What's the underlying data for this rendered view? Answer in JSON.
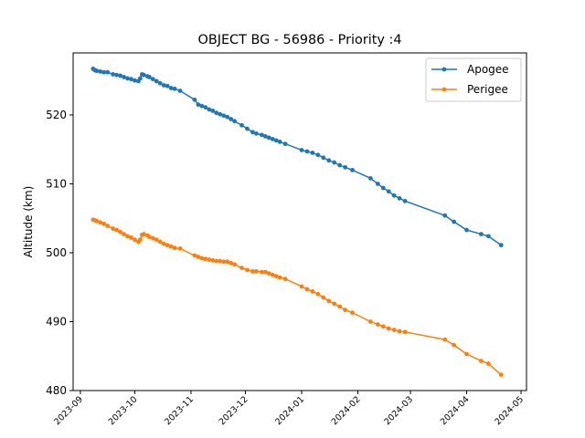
{
  "chart_data": {
    "type": "line",
    "title": "OBJECT BG - 56986 - Priority :4",
    "xlabel": "",
    "ylabel": "Altitude (km)",
    "xlim": [
      "2023-08-28",
      "2024-05-04"
    ],
    "ylim": [
      480,
      529
    ],
    "yticks": [
      480,
      490,
      500,
      510,
      520
    ],
    "xticks": [
      "2023-09",
      "2023-10",
      "2023-11",
      "2023-12",
      "2024-01",
      "2024-02",
      "2024-03",
      "2024-04",
      "2024-05"
    ],
    "grid": false,
    "legend_position": "top-right",
    "series": [
      {
        "name": "Apogee",
        "color": "#1f77b4",
        "points": [
          [
            "2023-09-08",
            526.7
          ],
          [
            "2023-09-09",
            526.5
          ],
          [
            "2023-09-10",
            526.4
          ],
          [
            "2023-09-12",
            526.3
          ],
          [
            "2023-09-14",
            526.2
          ],
          [
            "2023-09-16",
            526.2
          ],
          [
            "2023-09-19",
            525.9
          ],
          [
            "2023-09-21",
            525.8
          ],
          [
            "2023-09-23",
            525.7
          ],
          [
            "2023-09-25",
            525.5
          ],
          [
            "2023-09-27",
            525.3
          ],
          [
            "2023-09-29",
            525.2
          ],
          [
            "2023-10-01",
            525.0
          ],
          [
            "2023-10-03",
            524.9
          ],
          [
            "2023-10-04",
            525.3
          ],
          [
            "2023-10-05",
            525.9
          ],
          [
            "2023-10-06",
            525.8
          ],
          [
            "2023-10-08",
            525.6
          ],
          [
            "2023-10-09",
            525.5
          ],
          [
            "2023-10-11",
            525.2
          ],
          [
            "2023-10-13",
            524.9
          ],
          [
            "2023-10-15",
            524.6
          ],
          [
            "2023-10-17",
            524.3
          ],
          [
            "2023-10-19",
            524.2
          ],
          [
            "2023-10-21",
            523.9
          ],
          [
            "2023-10-23",
            523.8
          ],
          [
            "2023-10-26",
            523.5
          ],
          [
            "2023-11-03",
            522.2
          ],
          [
            "2023-11-05",
            521.5
          ],
          [
            "2023-11-07",
            521.3
          ],
          [
            "2023-11-09",
            521.1
          ],
          [
            "2023-11-11",
            520.8
          ],
          [
            "2023-11-13",
            520.6
          ],
          [
            "2023-11-15",
            520.3
          ],
          [
            "2023-11-17",
            520.1
          ],
          [
            "2023-11-19",
            519.9
          ],
          [
            "2023-11-21",
            519.7
          ],
          [
            "2023-11-23",
            519.4
          ],
          [
            "2023-11-25",
            519.1
          ],
          [
            "2023-11-29",
            518.5
          ],
          [
            "2023-12-02",
            518.0
          ],
          [
            "2023-12-05",
            517.5
          ],
          [
            "2023-12-07",
            517.3
          ],
          [
            "2023-12-10",
            517.1
          ],
          [
            "2023-12-12",
            516.9
          ],
          [
            "2023-12-14",
            516.7
          ],
          [
            "2023-12-16",
            516.5
          ],
          [
            "2023-12-18",
            516.3
          ],
          [
            "2023-12-20",
            516.1
          ],
          [
            "2023-12-23",
            515.8
          ],
          [
            "2024-01-01",
            514.9
          ],
          [
            "2024-01-04",
            514.7
          ],
          [
            "2024-01-07",
            514.5
          ],
          [
            "2024-01-10",
            514.2
          ],
          [
            "2024-01-13",
            513.8
          ],
          [
            "2024-01-16",
            513.4
          ],
          [
            "2024-01-19",
            513.1
          ],
          [
            "2024-01-22",
            512.7
          ],
          [
            "2024-01-25",
            512.4
          ],
          [
            "2024-01-29",
            512.0
          ],
          [
            "2024-02-08",
            510.8
          ],
          [
            "2024-02-12",
            510.0
          ],
          [
            "2024-02-15",
            509.4
          ],
          [
            "2024-02-18",
            508.9
          ],
          [
            "2024-02-21",
            508.3
          ],
          [
            "2024-02-24",
            507.9
          ],
          [
            "2024-02-27",
            507.5
          ],
          [
            "2024-03-20",
            505.4
          ],
          [
            "2024-03-25",
            504.5
          ],
          [
            "2024-04-01",
            503.3
          ],
          [
            "2024-04-09",
            502.7
          ],
          [
            "2024-04-13",
            502.4
          ],
          [
            "2024-04-20",
            501.1
          ]
        ]
      },
      {
        "name": "Perigee",
        "color": "#ff7f0e",
        "points": [
          [
            "2023-09-08",
            504.8
          ],
          [
            "2023-09-09",
            504.7
          ],
          [
            "2023-09-10",
            504.6
          ],
          [
            "2023-09-12",
            504.4
          ],
          [
            "2023-09-14",
            504.2
          ],
          [
            "2023-09-16",
            503.9
          ],
          [
            "2023-09-19",
            503.5
          ],
          [
            "2023-09-21",
            503.3
          ],
          [
            "2023-09-23",
            503.0
          ],
          [
            "2023-09-25",
            502.7
          ],
          [
            "2023-09-27",
            502.4
          ],
          [
            "2023-09-29",
            502.2
          ],
          [
            "2023-10-01",
            501.9
          ],
          [
            "2023-10-03",
            501.6
          ],
          [
            "2023-10-04",
            501.9
          ],
          [
            "2023-10-05",
            502.6
          ],
          [
            "2023-10-06",
            502.7
          ],
          [
            "2023-10-08",
            502.5
          ],
          [
            "2023-10-09",
            502.3
          ],
          [
            "2023-10-11",
            502.1
          ],
          [
            "2023-10-13",
            501.9
          ],
          [
            "2023-10-15",
            501.6
          ],
          [
            "2023-10-17",
            501.3
          ],
          [
            "2023-10-19",
            501.1
          ],
          [
            "2023-10-21",
            500.9
          ],
          [
            "2023-10-23",
            500.7
          ],
          [
            "2023-10-26",
            500.6
          ],
          [
            "2023-11-03",
            499.6
          ],
          [
            "2023-11-05",
            499.4
          ],
          [
            "2023-11-07",
            499.2
          ],
          [
            "2023-11-09",
            499.1
          ],
          [
            "2023-11-11",
            499.0
          ],
          [
            "2023-11-13",
            498.9
          ],
          [
            "2023-11-15",
            498.8
          ],
          [
            "2023-11-17",
            498.8
          ],
          [
            "2023-11-19",
            498.7
          ],
          [
            "2023-11-21",
            498.7
          ],
          [
            "2023-11-23",
            498.5
          ],
          [
            "2023-11-25",
            498.3
          ],
          [
            "2023-11-29",
            497.8
          ],
          [
            "2023-12-02",
            497.5
          ],
          [
            "2023-12-05",
            497.3
          ],
          [
            "2023-12-07",
            497.3
          ],
          [
            "2023-12-10",
            497.2
          ],
          [
            "2023-12-12",
            497.2
          ],
          [
            "2023-12-14",
            497.0
          ],
          [
            "2023-12-16",
            496.8
          ],
          [
            "2023-12-18",
            496.6
          ],
          [
            "2023-12-20",
            496.4
          ],
          [
            "2023-12-23",
            496.2
          ],
          [
            "2024-01-01",
            495.1
          ],
          [
            "2024-01-04",
            494.7
          ],
          [
            "2024-01-07",
            494.4
          ],
          [
            "2024-01-10",
            494.0
          ],
          [
            "2024-01-13",
            493.5
          ],
          [
            "2024-01-16",
            493.0
          ],
          [
            "2024-01-19",
            492.6
          ],
          [
            "2024-01-22",
            492.2
          ],
          [
            "2024-01-25",
            491.7
          ],
          [
            "2024-01-29",
            491.3
          ],
          [
            "2024-02-08",
            490.0
          ],
          [
            "2024-02-12",
            489.6
          ],
          [
            "2024-02-15",
            489.3
          ],
          [
            "2024-02-18",
            489.0
          ],
          [
            "2024-02-21",
            488.8
          ],
          [
            "2024-02-24",
            488.6
          ],
          [
            "2024-02-27",
            488.5
          ],
          [
            "2024-03-20",
            487.4
          ],
          [
            "2024-03-25",
            486.6
          ],
          [
            "2024-04-01",
            485.3
          ],
          [
            "2024-04-09",
            484.3
          ],
          [
            "2024-04-13",
            483.9
          ],
          [
            "2024-04-20",
            482.3
          ]
        ]
      }
    ]
  }
}
